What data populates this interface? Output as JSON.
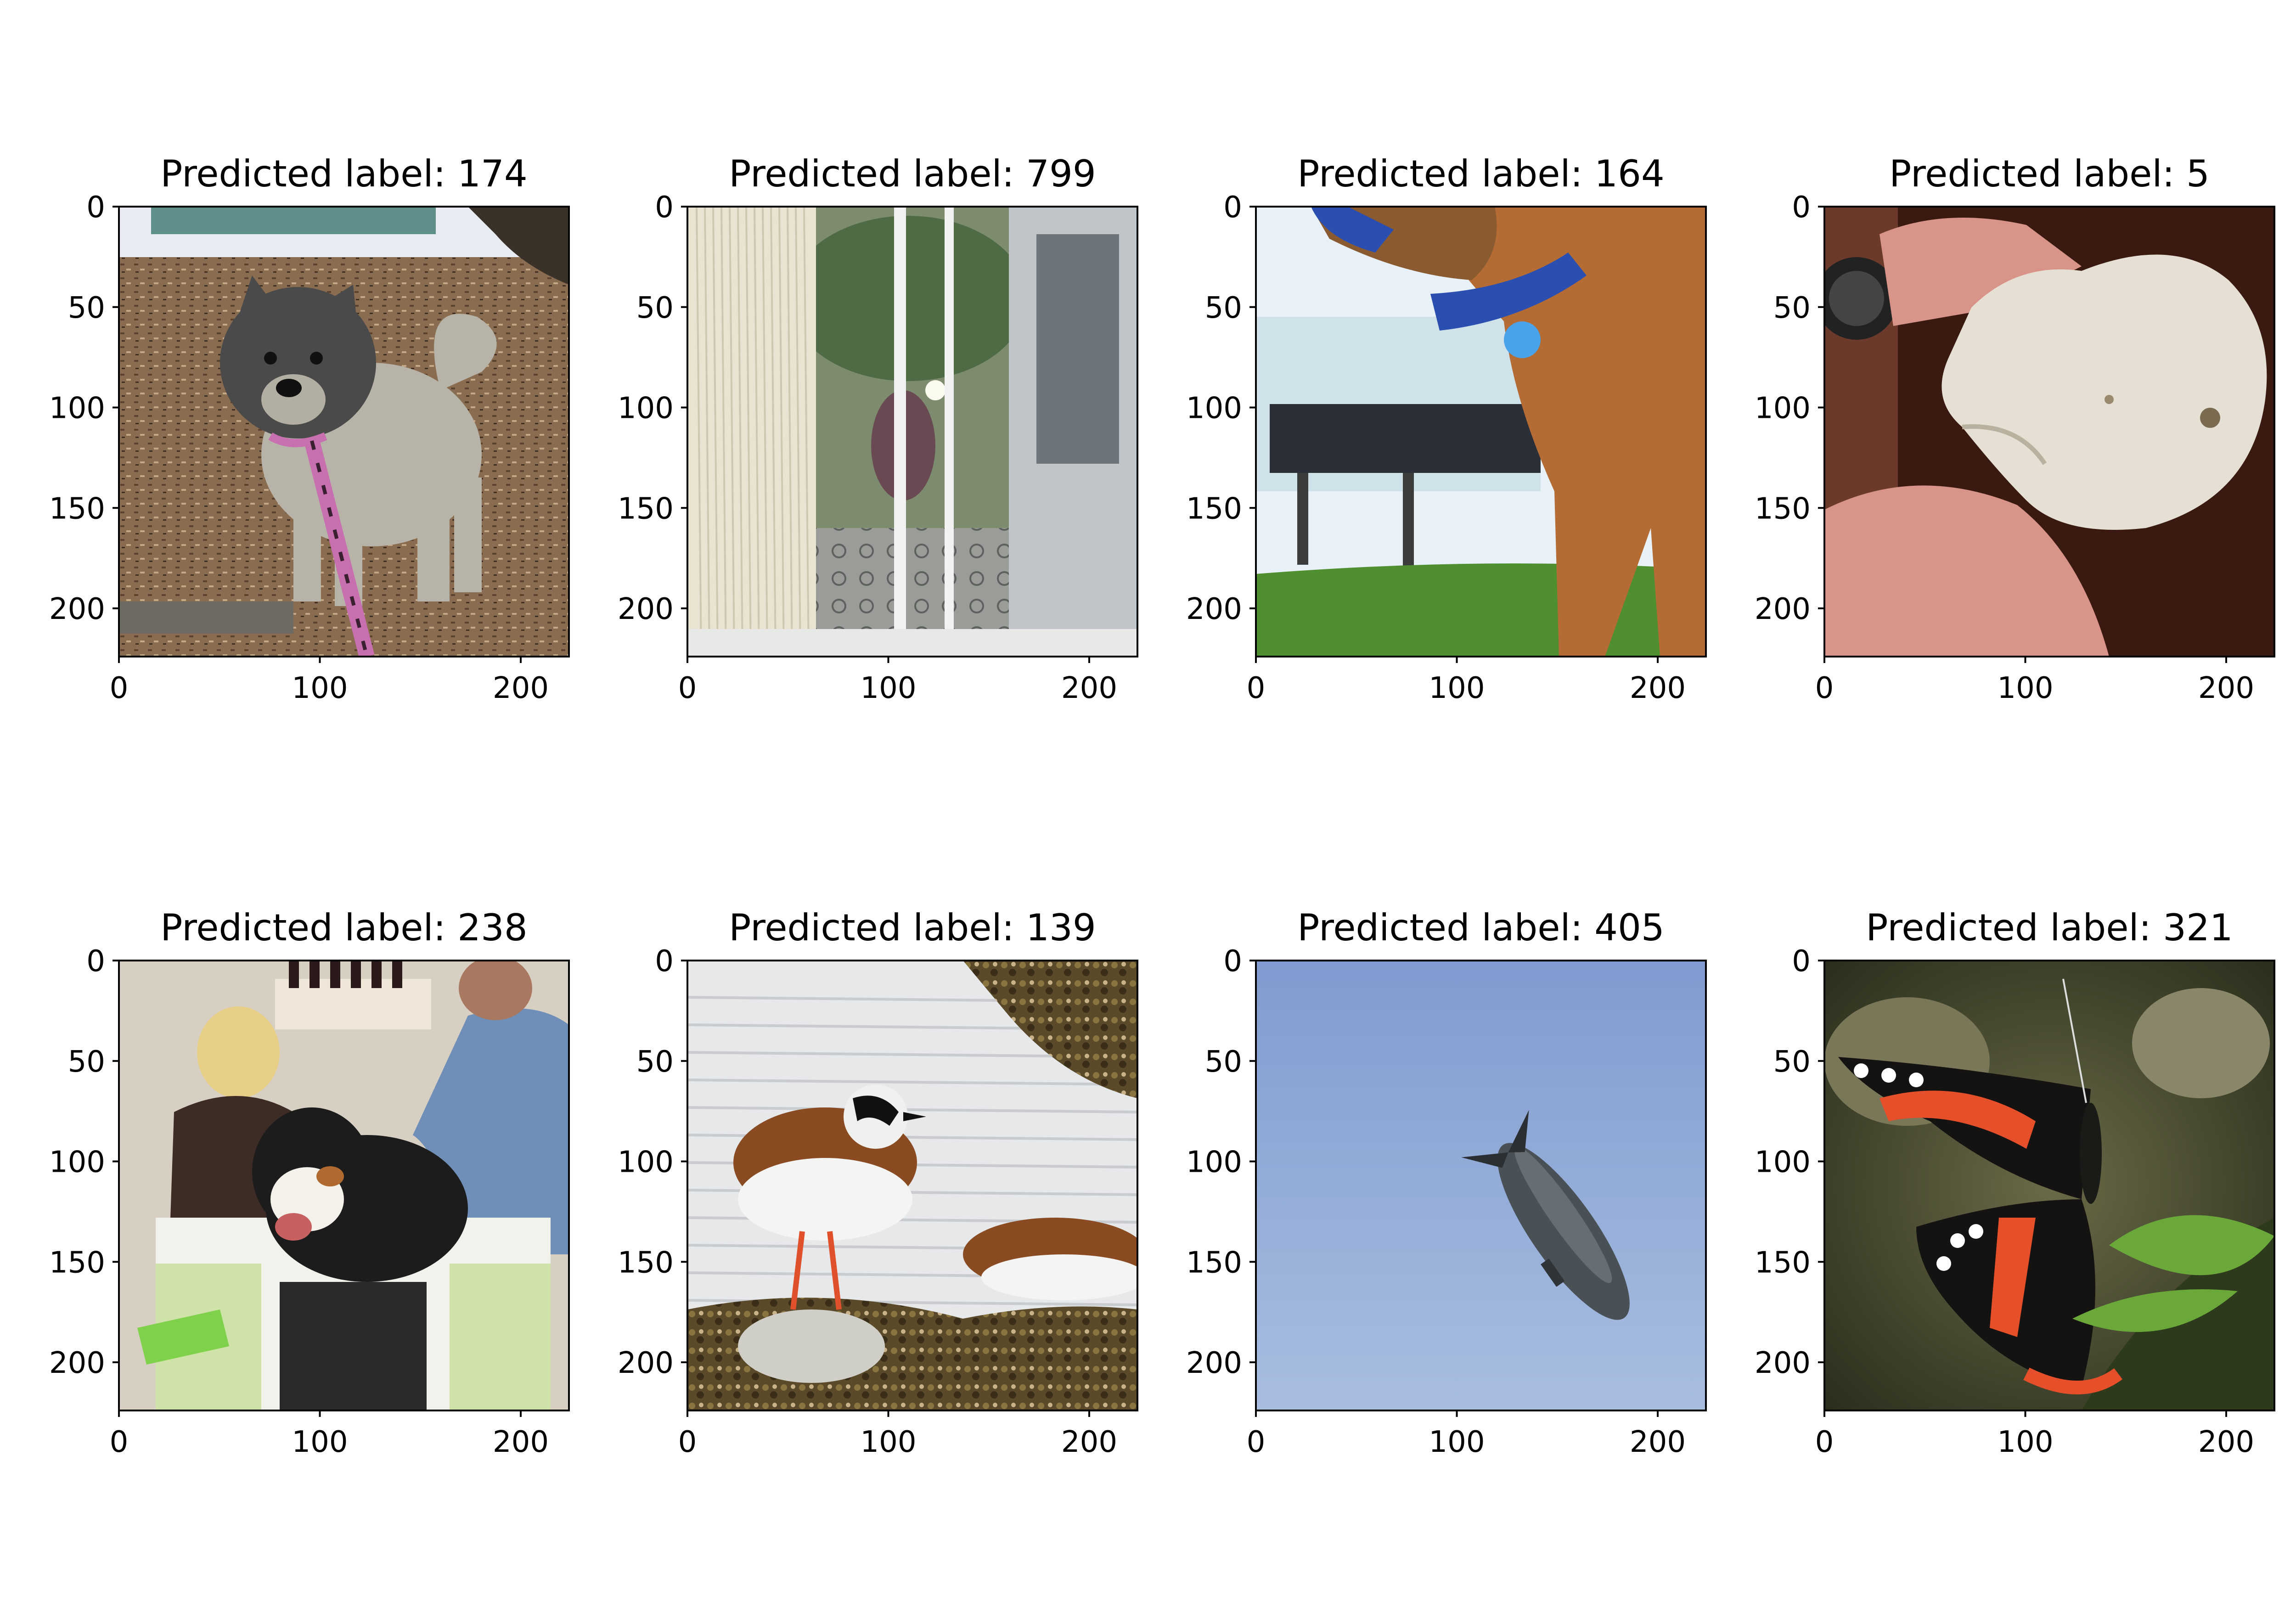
{
  "figure": {
    "background": "#ffffff"
  },
  "chart_data": [
    {
      "type": "image",
      "title": "Predicted label: 174",
      "subject": "dog-puppy",
      "xlim": [
        0,
        224
      ],
      "ylim": [
        224,
        0
      ],
      "xticks": [
        0,
        100,
        200
      ],
      "yticks": [
        0,
        50,
        100,
        150,
        200
      ],
      "colors": {
        "sky": "#e8ecf2",
        "ground": "#8a6d50",
        "ground_dark": "#5b4330",
        "subject": "#4a4a4a",
        "subject_light": "#b7b3a8",
        "accent": "#c86fb0"
      }
    },
    {
      "type": "image",
      "title": "Predicted label: 799",
      "subject": "sliding-door",
      "xlim": [
        0,
        224
      ],
      "ylim": [
        224,
        0
      ],
      "xticks": [
        0,
        100,
        200
      ],
      "yticks": [
        0,
        50,
        100,
        150,
        200
      ],
      "colors": {
        "curtain": "#e9e4d2",
        "glass": "#7d8b6f",
        "floor": "#a0a3a0",
        "frame": "#f2f2f2",
        "wall": "#8e949a"
      }
    },
    {
      "type": "image",
      "title": "Predicted label: 164",
      "subject": "dog-collar",
      "xlim": [
        0,
        224
      ],
      "ylim": [
        224,
        0
      ],
      "xticks": [
        0,
        100,
        200
      ],
      "yticks": [
        0,
        50,
        100,
        150,
        200
      ],
      "colors": {
        "sky": "#e8f1f7",
        "house": "#cfe2ea",
        "house_dark": "#2b3038",
        "grass": "#4f8f2f",
        "dog": "#b56b34",
        "collar": "#2a4fb0"
      }
    },
    {
      "type": "image",
      "title": "Predicted label: 5",
      "subject": "ray-fish",
      "xlim": [
        0,
        224
      ],
      "ylim": [
        224,
        0
      ],
      "xticks": [
        0,
        100,
        200
      ],
      "yticks": [
        0,
        50,
        100,
        150,
        200
      ],
      "colors": {
        "background": "#3a1a10",
        "hand": "#d9948a",
        "fish": "#e6e0d4",
        "watch": "#222222"
      }
    },
    {
      "type": "image",
      "title": "Predicted label: 238",
      "subject": "dog-bath",
      "xlim": [
        0,
        224
      ],
      "ylim": [
        224,
        0
      ],
      "xticks": [
        0,
        100,
        200
      ],
      "yticks": [
        0,
        50,
        100,
        150,
        200
      ],
      "colors": {
        "wall": "#d8cfc3",
        "tub": "#f2f2ec",
        "tub_side": "#cfe2a8",
        "dog": "#1c1c1c",
        "person": "#3d2c25",
        "shirt": "#6f8fb8",
        "towel": "#7fd04a"
      }
    },
    {
      "type": "image",
      "title": "Predicted label: 139",
      "subject": "shorebird",
      "xlim": [
        0,
        224
      ],
      "ylim": [
        224,
        0
      ],
      "xticks": [
        0,
        100,
        200
      ],
      "yticks": [
        0,
        50,
        100,
        150,
        200
      ],
      "colors": {
        "water": "#e6e8ea",
        "seaweed": "#6b5a32",
        "bird_back": "#8a4a22",
        "bird_white": "#f4f4f2",
        "legs": "#e0502a"
      }
    },
    {
      "type": "image",
      "title": "Predicted label: 405",
      "subject": "airship",
      "xlim": [
        0,
        224
      ],
      "ylim": [
        224,
        0
      ],
      "xticks": [
        0,
        100,
        200
      ],
      "yticks": [
        0,
        50,
        100,
        150,
        200
      ],
      "colors": {
        "sky_top": "#7f9bcf",
        "sky_bottom": "#a8bde0",
        "airship": "#4a5156"
      }
    },
    {
      "type": "image",
      "title": "Predicted label: 321",
      "subject": "butterfly",
      "xlim": [
        0,
        224
      ],
      "ylim": [
        224,
        0
      ],
      "xticks": [
        0,
        100,
        200
      ],
      "yticks": [
        0,
        50,
        100,
        150,
        200
      ],
      "colors": {
        "background": "#3c4228",
        "background_light": "#6a6a48",
        "wing": "#151312",
        "band": "#e5502a",
        "spots": "#ffffff",
        "leaf": "#6aa83a"
      }
    }
  ]
}
